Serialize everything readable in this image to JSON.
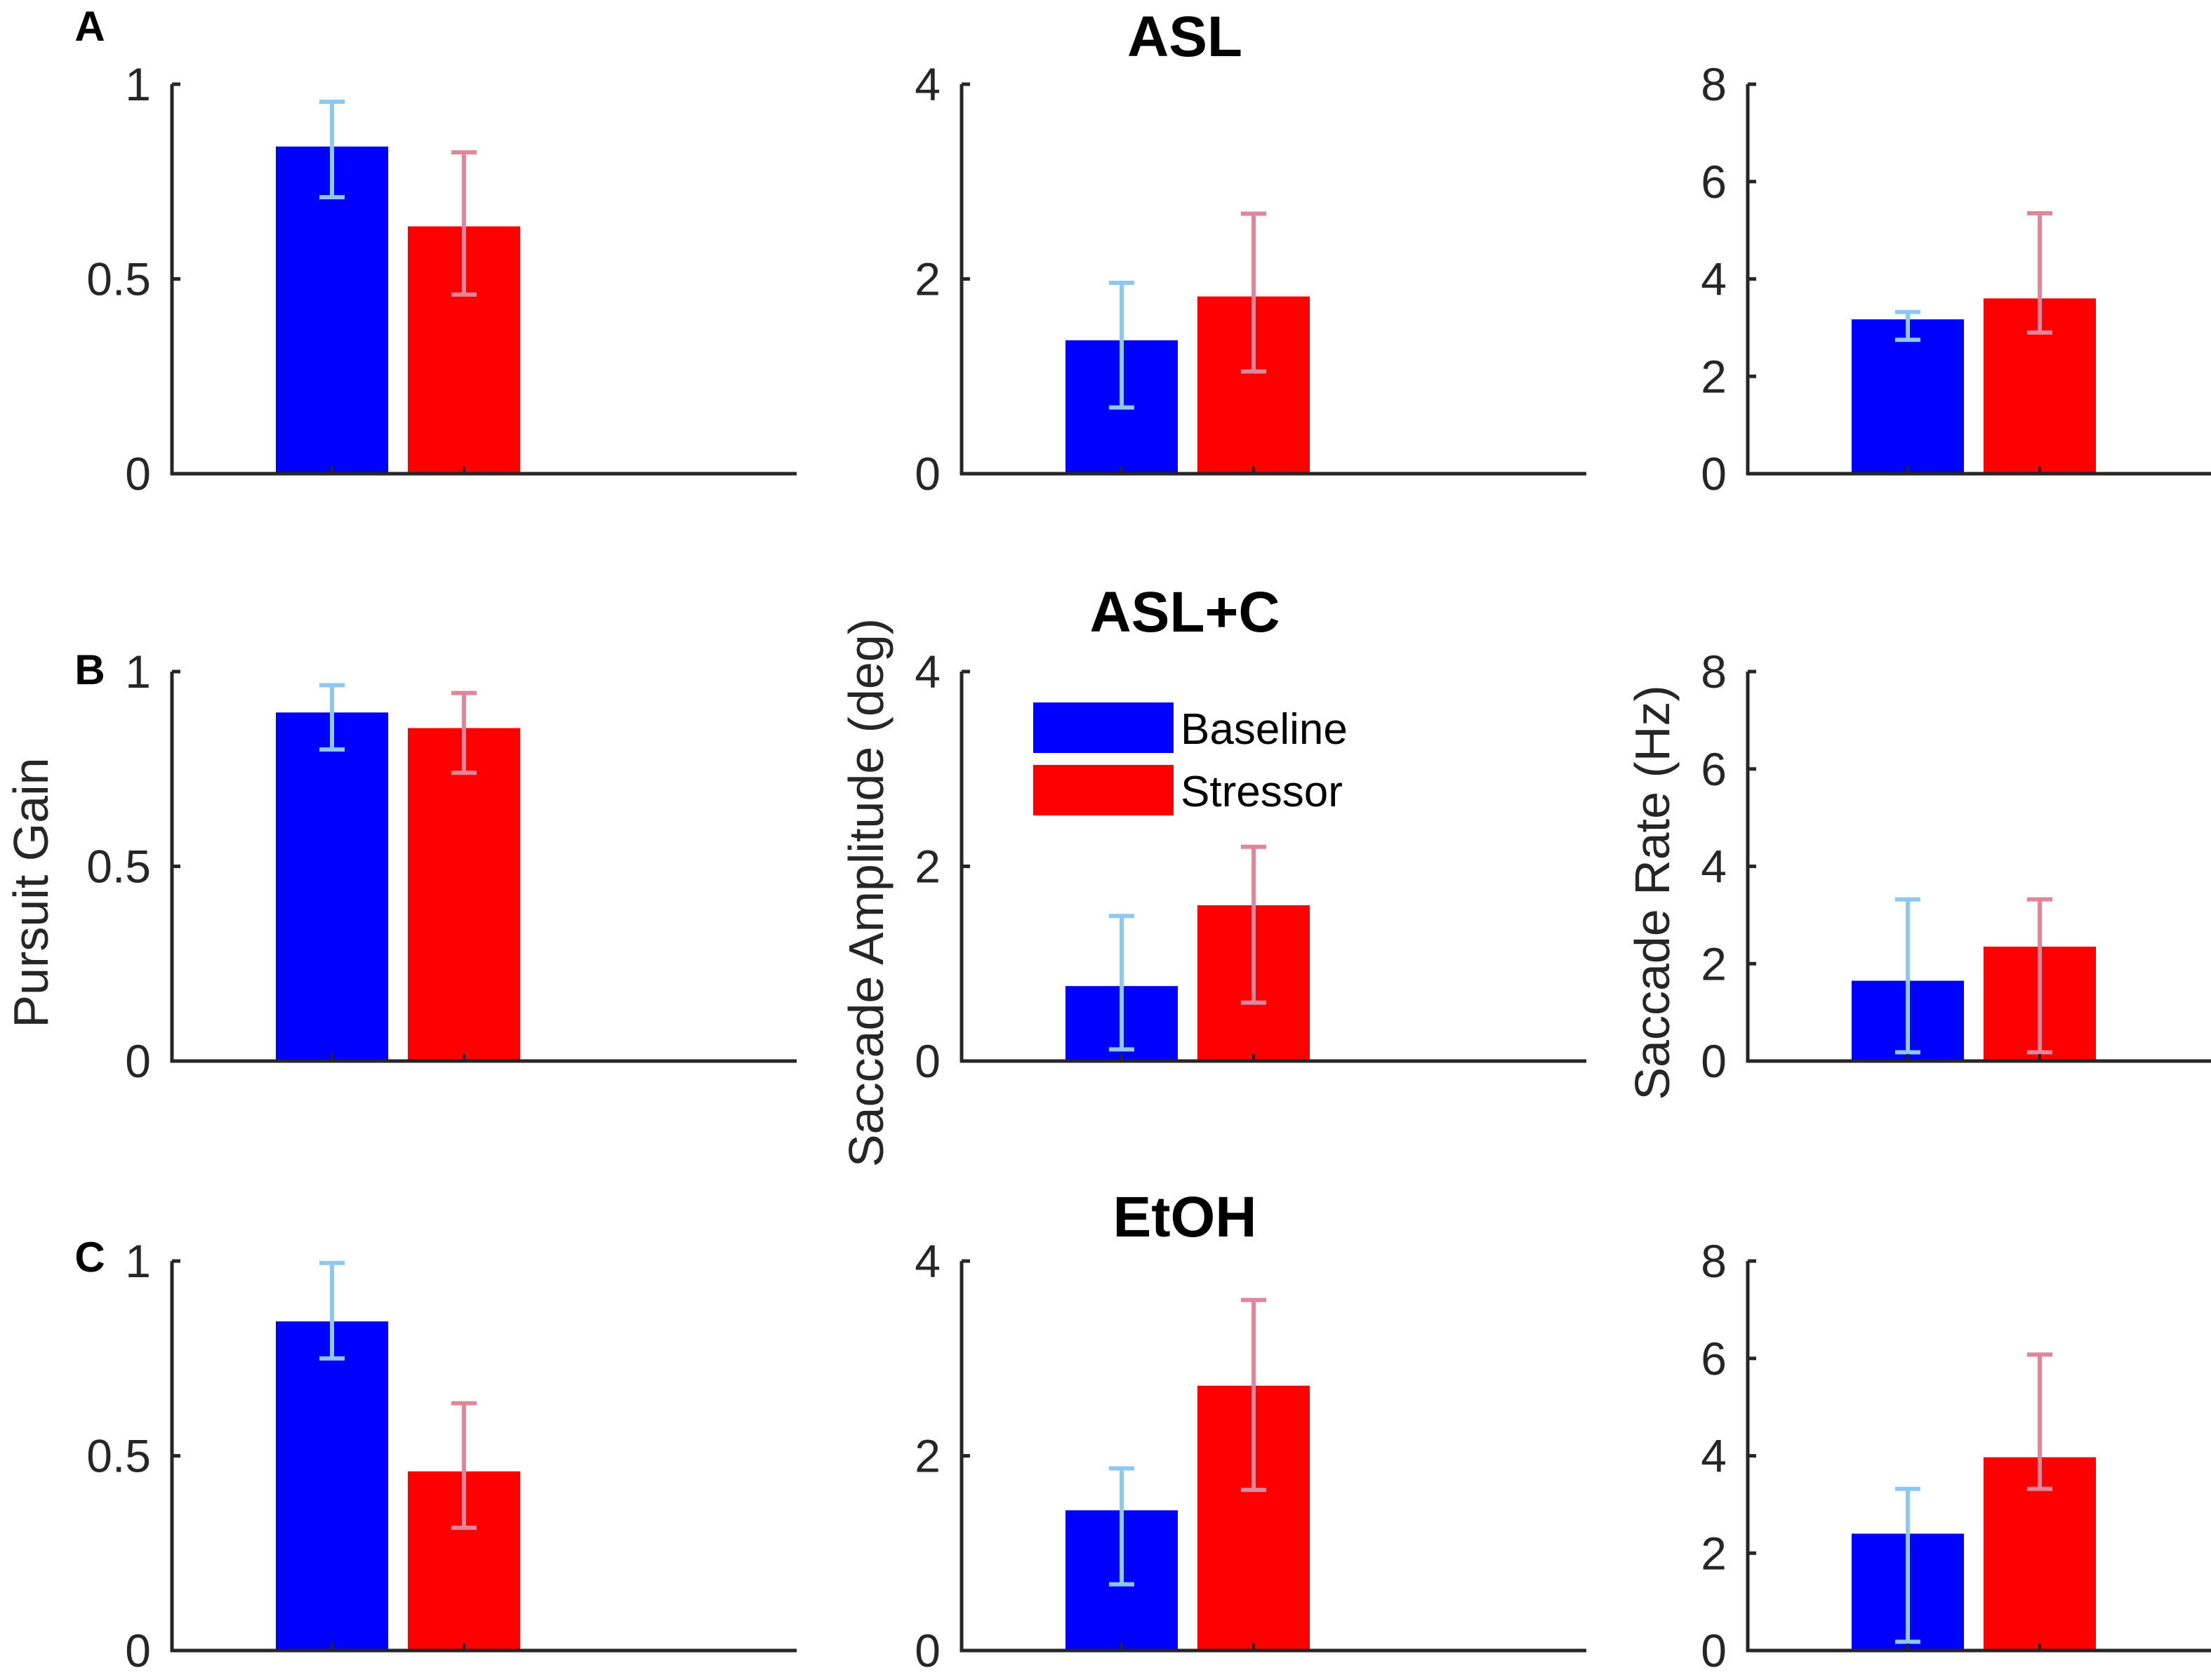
{
  "figure": {
    "row_titles": [
      "ASL",
      "ASL+C",
      "EtOH"
    ],
    "panel_letters": [
      "A",
      "B",
      "C"
    ],
    "axis_labels": {
      "pursuit": "Pursuit Gain",
      "amplitude": "Saccade Amplitude (deg)",
      "rate": "Saccade Rate (Hz)"
    },
    "legend": [
      {
        "label": "Baseline",
        "color": "#0000ff"
      },
      {
        "label": "Stressor",
        "color": "#ff0000"
      }
    ]
  },
  "colors": {
    "baseline_bar": "#0000ff",
    "stressor_bar": "#ff0000",
    "baseline_error": "#8ec8f0",
    "stressor_error": "#e0869a",
    "axis": "#262626"
  },
  "chart_data": [
    {
      "type": "bar",
      "row": "ASL",
      "metric": "Pursuit Gain",
      "ylim": [
        0,
        1
      ],
      "yticks": [
        "0",
        "0.5",
        "1"
      ],
      "categories": [
        "Baseline",
        "Stressor"
      ],
      "values": [
        0.84,
        0.635
      ],
      "error_low": [
        0.71,
        0.46
      ],
      "error_high": [
        0.955,
        0.825
      ]
    },
    {
      "type": "bar",
      "row": "ASL",
      "metric": "Saccade Amplitude (deg)",
      "ylim": [
        0,
        4
      ],
      "yticks": [
        "0",
        "2",
        "4"
      ],
      "categories": [
        "Baseline",
        "Stressor"
      ],
      "values": [
        1.37,
        1.82
      ],
      "error_low": [
        0.68,
        1.05
      ],
      "error_high": [
        1.96,
        2.67
      ]
    },
    {
      "type": "bar",
      "row": "ASL",
      "metric": "Saccade Rate (Hz)",
      "ylim": [
        0,
        8
      ],
      "yticks": [
        "0",
        "2",
        "4",
        "6",
        "8"
      ],
      "categories": [
        "Baseline",
        "Stressor"
      ],
      "values": [
        3.17,
        3.6
      ],
      "error_low": [
        2.75,
        2.9
      ],
      "error_high": [
        3.32,
        5.35
      ]
    },
    {
      "type": "bar",
      "row": "ASL+C",
      "metric": "Pursuit Gain",
      "ylim": [
        0,
        1
      ],
      "yticks": [
        "0",
        "0.5",
        "1"
      ],
      "categories": [
        "Baseline",
        "Stressor"
      ],
      "values": [
        0.895,
        0.855
      ],
      "error_low": [
        0.8,
        0.74
      ],
      "error_high": [
        0.965,
        0.945
      ]
    },
    {
      "type": "bar",
      "row": "ASL+C",
      "metric": "Saccade Amplitude (deg)",
      "ylim": [
        0,
        4
      ],
      "yticks": [
        "0",
        "2",
        "4"
      ],
      "categories": [
        "Baseline",
        "Stressor"
      ],
      "values": [
        0.77,
        1.6
      ],
      "error_low": [
        0.12,
        0.6
      ],
      "error_high": [
        1.49,
        2.2
      ]
    },
    {
      "type": "bar",
      "row": "ASL+C",
      "metric": "Saccade Rate (Hz)",
      "ylim": [
        0,
        8
      ],
      "yticks": [
        "0",
        "2",
        "4",
        "6",
        "8"
      ],
      "categories": [
        "Baseline",
        "Stressor"
      ],
      "values": [
        1.65,
        2.35
      ],
      "error_low": [
        0.18,
        0.18
      ],
      "error_high": [
        3.32,
        3.32
      ]
    },
    {
      "type": "bar",
      "row": "EtOH",
      "metric": "Pursuit Gain",
      "ylim": [
        0,
        1
      ],
      "yticks": [
        "0",
        "0.5",
        "1"
      ],
      "categories": [
        "Baseline",
        "Stressor"
      ],
      "values": [
        0.845,
        0.46
      ],
      "error_low": [
        0.75,
        0.315
      ],
      "error_high": [
        0.995,
        0.635
      ]
    },
    {
      "type": "bar",
      "row": "EtOH",
      "metric": "Saccade Amplitude (deg)",
      "ylim": [
        0,
        4
      ],
      "yticks": [
        "0",
        "2",
        "4"
      ],
      "categories": [
        "Baseline",
        "Stressor"
      ],
      "values": [
        1.44,
        2.72
      ],
      "error_low": [
        0.68,
        1.65
      ],
      "error_high": [
        1.87,
        3.6
      ]
    },
    {
      "type": "bar",
      "row": "EtOH",
      "metric": "Saccade Rate (Hz)",
      "ylim": [
        0,
        8
      ],
      "yticks": [
        "0",
        "2",
        "4",
        "6",
        "8"
      ],
      "categories": [
        "Baseline",
        "Stressor"
      ],
      "values": [
        2.4,
        3.97
      ],
      "error_low": [
        0.18,
        3.32
      ],
      "error_high": [
        3.32,
        6.08
      ]
    }
  ]
}
